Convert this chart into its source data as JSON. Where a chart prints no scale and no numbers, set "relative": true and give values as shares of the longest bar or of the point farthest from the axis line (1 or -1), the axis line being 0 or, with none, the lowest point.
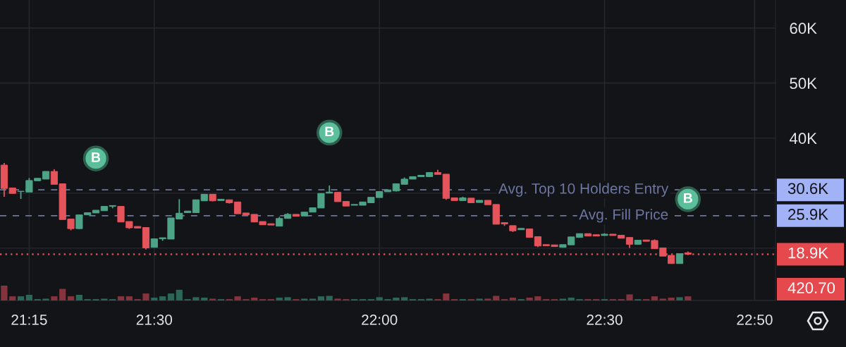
{
  "chart_data": [
    {
      "type": "candlestick",
      "categories": [
        null,
        null,
        null,
        "21:15",
        null,
        null,
        null,
        null,
        null,
        null,
        null,
        null,
        null,
        null,
        null,
        null,
        null,
        null,
        "21:30",
        null,
        null,
        null,
        null,
        null,
        null,
        null,
        null,
        null,
        null,
        null,
        null,
        null,
        null,
        null,
        null,
        null,
        null,
        null,
        null,
        null,
        null,
        null,
        null,
        null,
        null,
        "22:00",
        null,
        null,
        null,
        null,
        null,
        null,
        null,
        null,
        null,
        null,
        null,
        null,
        null,
        null,
        null,
        null,
        null,
        null,
        null,
        null,
        null,
        null,
        null,
        null,
        null,
        null,
        "22:30",
        null,
        null,
        null,
        null,
        null,
        null,
        null,
        null,
        null,
        null,
        null,
        null,
        null,
        null,
        null,
        null,
        null,
        "22:50",
        null,
        null
      ],
      "ohlc": [
        [
          35100,
          35500,
          29350,
          30850
        ],
        [
          30950,
          30950,
          29950,
          29950
        ],
        [
          30300,
          30350,
          28950,
          30350
        ],
        [
          30200,
          32750,
          30200,
          32300
        ],
        [
          32250,
          32700,
          32250,
          32700
        ],
        [
          32550,
          33950,
          32550,
          33950
        ],
        [
          33950,
          34350,
          31600,
          31600
        ],
        [
          31700,
          31700,
          25200,
          25200
        ],
        [
          25300,
          25300,
          23250,
          23550
        ],
        [
          23550,
          26050,
          23500,
          26050
        ],
        [
          26050,
          26450,
          26050,
          26450
        ],
        [
          26400,
          26900,
          26400,
          26900
        ],
        [
          26800,
          27600,
          26800,
          27600
        ],
        [
          27600,
          27750,
          27250,
          27750
        ],
        [
          27600,
          27600,
          24750,
          24750
        ],
        [
          24850,
          24850,
          23500,
          23700
        ],
        [
          23950,
          23950,
          23650,
          23650
        ],
        [
          23750,
          23750,
          19750,
          20050
        ],
        [
          20150,
          21700,
          20150,
          21700
        ],
        [
          21700,
          21900,
          21350,
          21900
        ],
        [
          21650,
          25500,
          21650,
          25500
        ],
        [
          25300,
          28900,
          25300,
          26350
        ],
        [
          26450,
          26750,
          26450,
          26750
        ],
        [
          26450,
          28800,
          26450,
          28800
        ],
        [
          28600,
          29800,
          28600,
          29800
        ],
        [
          29800,
          29800,
          28500,
          28600
        ],
        [
          28650,
          28900,
          28650,
          28900
        ],
        [
          28800,
          28800,
          28100,
          28250
        ],
        [
          28400,
          28400,
          26250,
          26250
        ],
        [
          26400,
          26400,
          26050,
          26050
        ],
        [
          26150,
          26150,
          24750,
          24750
        ],
        [
          24850,
          24850,
          24250,
          24250
        ],
        [
          24450,
          24450,
          24200,
          24200
        ],
        [
          24000,
          25700,
          24000,
          25400
        ],
        [
          25400,
          26350,
          25400,
          26150
        ],
        [
          26150,
          26150,
          25800,
          25800
        ],
        [
          25850,
          26550,
          25850,
          26550
        ],
        [
          26550,
          27350,
          26550,
          27350
        ],
        [
          27300,
          29950,
          27300,
          29950
        ],
        [
          30000,
          31400,
          30000,
          30200
        ],
        [
          30150,
          30150,
          28450,
          28450
        ],
        [
          28500,
          28500,
          27650,
          27650
        ],
        [
          27800,
          27950,
          27800,
          27950
        ],
        [
          27800,
          28400,
          27800,
          28400
        ],
        [
          28250,
          29250,
          28250,
          29250
        ],
        [
          29200,
          30300,
          29200,
          30300
        ],
        [
          30250,
          30600,
          30250,
          30600
        ],
        [
          30400,
          31700,
          30300,
          31700
        ],
        [
          31600,
          32850,
          31600,
          32550
        ],
        [
          32550,
          33000,
          32550,
          33000
        ],
        [
          33000,
          33250,
          33000,
          33250
        ],
        [
          33000,
          33750,
          33000,
          33750
        ],
        [
          33750,
          34250,
          33400,
          33400
        ],
        [
          33450,
          33450,
          28800,
          29050
        ],
        [
          29150,
          29150,
          28650,
          28650
        ],
        [
          28650,
          29350,
          28650,
          29150
        ],
        [
          29100,
          29100,
          28250,
          28250
        ],
        [
          28300,
          28700,
          28300,
          28700
        ],
        [
          28700,
          28700,
          27900,
          27900
        ],
        [
          27950,
          27950,
          24350,
          24350
        ],
        [
          24650,
          24650,
          24050,
          24400
        ],
        [
          24100,
          24100,
          22950,
          23150
        ],
        [
          23350,
          23600,
          23350,
          23600
        ],
        [
          23500,
          23500,
          21950,
          21950
        ],
        [
          22100,
          22100,
          20200,
          20400
        ],
        [
          20650,
          20650,
          20450,
          20450
        ],
        [
          20600,
          20600,
          20250,
          20300
        ],
        [
          20150,
          20650,
          20150,
          20650
        ],
        [
          20600,
          22050,
          20600,
          22050
        ],
        [
          21950,
          22650,
          21950,
          22650
        ],
        [
          22650,
          22650,
          22200,
          22200
        ],
        [
          22450,
          22450,
          22200,
          22200
        ],
        [
          22300,
          22700,
          22300,
          22550
        ],
        [
          22550,
          22550,
          22300,
          22300
        ],
        [
          22350,
          22350,
          21800,
          21800
        ],
        [
          21950,
          21950,
          20050,
          20700
        ],
        [
          20700,
          21450,
          20700,
          21450
        ],
        [
          21500,
          21500,
          21250,
          21250
        ],
        [
          21400,
          21600,
          19900,
          19900
        ],
        [
          20050,
          20050,
          18550,
          18550
        ],
        [
          18700,
          18700,
          17200,
          17200
        ],
        [
          17200,
          19000,
          17200,
          19000
        ],
        [
          19150,
          19400,
          18900,
          18900
        ],
        null,
        null,
        null,
        null,
        null,
        null,
        null,
        null,
        null,
        null
      ],
      "colors": [
        "#e5535b",
        "#e5535b",
        "#4da386",
        "#4da386",
        "#4da386",
        "#4da386",
        "#e5535b",
        "#e5535b",
        "#e5535b",
        "#4da386",
        "#4da386",
        "#4da386",
        "#4da386",
        "#4da386",
        "#e5535b",
        "#e5535b",
        "#e5535b",
        "#e5535b",
        "#4da386",
        "#4da386",
        "#4da386",
        "#4da386",
        "#4da386",
        "#4da386",
        "#4da386",
        "#e5535b",
        "#4da386",
        "#e5535b",
        "#e5535b",
        "#e5535b",
        "#e5535b",
        "#e5535b",
        "#e5535b",
        "#4da386",
        "#4da386",
        "#e5535b",
        "#4da386",
        "#4da386",
        "#4da386",
        "#4da386",
        "#e5535b",
        "#e5535b",
        "#4da386",
        "#4da386",
        "#4da386",
        "#4da386",
        "#4da386",
        "#4da386",
        "#4da386",
        "#4da386",
        "#4da386",
        "#4da386",
        "#e5535b",
        "#e5535b",
        "#e5535b",
        "#4da386",
        "#e5535b",
        "#4da386",
        "#e5535b",
        "#e5535b",
        "#e5535b",
        "#e5535b",
        "#4da386",
        "#e5535b",
        "#e5535b",
        "#e5535b",
        "#e5535b",
        "#4da386",
        "#4da386",
        "#4da386",
        "#e5535b",
        "#e5535b",
        "#4da386",
        "#e5535b",
        "#e5535b",
        "#e5535b",
        "#4da386",
        "#e5535b",
        "#e5535b",
        "#e5535b",
        "#e5535b",
        "#4da386",
        "#e5535b",
        null,
        null,
        null,
        null,
        null,
        null,
        null,
        null,
        null,
        null
      ],
      "series": [
        {
          "type": "scatter",
          "name": "B",
          "color": "#5cbf9c",
          "marker": "circle",
          "values": [
            null,
            null,
            null,
            null,
            null,
            null,
            null,
            null,
            null,
            null,
            null,
            36300,
            null,
            null,
            null,
            null,
            null,
            null,
            null,
            null,
            null,
            null,
            null,
            null,
            null,
            null,
            null,
            null,
            null,
            null,
            null,
            null,
            null,
            null,
            null,
            null,
            null,
            null,
            null,
            41000,
            null,
            null,
            null,
            null,
            null,
            null,
            null,
            null,
            null,
            null,
            null,
            null,
            null,
            null,
            null,
            null,
            null,
            null,
            null,
            null,
            null,
            null,
            null,
            null,
            null,
            null,
            null,
            null,
            null,
            null,
            null,
            null,
            null,
            null,
            null,
            null,
            null,
            null,
            null,
            null,
            null,
            null,
            28900,
            null,
            null,
            null,
            null,
            null,
            null,
            null,
            null,
            null,
            null
          ]
        }
      ],
      "ylim": [
        10500,
        65100
      ],
      "yticks": [
        {
          "value": 20000,
          "label": null
        },
        {
          "value": 30000,
          "label": null
        },
        {
          "value": 40000,
          "label": "40K"
        },
        {
          "value": 50000,
          "label": "50K"
        },
        {
          "value": 60000,
          "label": "60K"
        }
      ],
      "grid": true,
      "ref_lines": [
        {
          "axis": "y",
          "value": 30600,
          "label": "30.6K",
          "color": "#6c76a1",
          "line_style": "dashed"
        },
        {
          "axis": "y",
          "value": 25900,
          "label": "25.9K",
          "color": "#6c76a1",
          "line_style": "dashed"
        },
        {
          "axis": "y",
          "value": 18900,
          "label": "18.9K",
          "color": "#e5484d",
          "line_style": "dotted"
        }
      ],
      "annotations": [
        {
          "text": "Avg. Top 10 Holders Entry",
          "y": 30600
        },
        {
          "text": "Avg. Fill Price",
          "y": 25900
        }
      ]
    },
    {
      "type": "bar",
      "relative": true,
      "categories": [
        null,
        null,
        null,
        null,
        null,
        null,
        null,
        null,
        null,
        null,
        null,
        null,
        null,
        null,
        null,
        null,
        null,
        null,
        null,
        null,
        null,
        null,
        null,
        null,
        null,
        null,
        null,
        null,
        null,
        null,
        null,
        null,
        null,
        null,
        null,
        null,
        null,
        null,
        null,
        null,
        null,
        null,
        null,
        null,
        null,
        null,
        null,
        null,
        null,
        null,
        null,
        null,
        null,
        null,
        null,
        null,
        null,
        null,
        null,
        null,
        null,
        null,
        null,
        null,
        null,
        null,
        null,
        null,
        null,
        null,
        null,
        null,
        null,
        null,
        null,
        null,
        null,
        null,
        null,
        null,
        null,
        null,
        null,
        null,
        null,
        null,
        null,
        null,
        null,
        null,
        null,
        null,
        null
      ],
      "values": [
        1,
        0.28,
        0.28,
        0.38,
        0.09,
        0.12,
        0.28,
        0.78,
        0.28,
        0.38,
        0.09,
        0.09,
        0.12,
        0.09,
        0.28,
        0.28,
        0.09,
        0.47,
        0.19,
        0.28,
        0.47,
        0.72,
        0.09,
        0.22,
        0.19,
        0.12,
        0.09,
        0.09,
        0.28,
        0.09,
        0.19,
        0.09,
        0.09,
        0.19,
        0.22,
        0.09,
        0.12,
        0.12,
        0.28,
        0.31,
        0.12,
        0.09,
        0.09,
        0.09,
        0.09,
        0.22,
        0.09,
        0.19,
        0.22,
        0.09,
        0.09,
        0.12,
        0.09,
        0.47,
        0.09,
        0.09,
        0.09,
        0.12,
        0.12,
        0.31,
        0.09,
        0.19,
        0.09,
        0.19,
        0.28,
        0.09,
        0.09,
        0.12,
        0.19,
        0.09,
        0.09,
        0.09,
        0.09,
        0.09,
        0.09,
        0.41,
        0.09,
        0.09,
        0.28,
        0.12,
        0.19,
        0.22,
        0.28,
        null,
        null,
        null,
        null,
        null,
        null,
        null,
        null,
        null,
        null
      ],
      "colors": [
        "#85333c",
        "#85333c",
        "#2b6656",
        "#2b6656",
        "#2b6656",
        "#2b6656",
        "#85333c",
        "#85333c",
        "#85333c",
        "#2b6656",
        "#2b6656",
        "#2b6656",
        "#2b6656",
        "#2b6656",
        "#85333c",
        "#85333c",
        "#85333c",
        "#85333c",
        "#2b6656",
        "#2b6656",
        "#2b6656",
        "#2b6656",
        "#2b6656",
        "#2b6656",
        "#2b6656",
        "#85333c",
        "#2b6656",
        "#85333c",
        "#85333c",
        "#85333c",
        "#85333c",
        "#85333c",
        "#85333c",
        "#2b6656",
        "#2b6656",
        "#85333c",
        "#2b6656",
        "#2b6656",
        "#2b6656",
        "#2b6656",
        "#85333c",
        "#85333c",
        "#2b6656",
        "#2b6656",
        "#2b6656",
        "#2b6656",
        "#2b6656",
        "#2b6656",
        "#2b6656",
        "#2b6656",
        "#2b6656",
        "#2b6656",
        "#85333c",
        "#85333c",
        "#85333c",
        "#2b6656",
        "#85333c",
        "#2b6656",
        "#85333c",
        "#85333c",
        "#85333c",
        "#85333c",
        "#2b6656",
        "#85333c",
        "#85333c",
        "#85333c",
        "#85333c",
        "#2b6656",
        "#2b6656",
        "#2b6656",
        "#85333c",
        "#85333c",
        "#2b6656",
        "#85333c",
        "#85333c",
        "#85333c",
        "#2b6656",
        "#85333c",
        "#85333c",
        "#85333c",
        "#85333c",
        "#2b6656",
        "#85333c",
        null,
        null,
        null,
        null,
        null,
        null,
        null,
        null,
        null,
        null
      ],
      "annotations": [
        "420.70"
      ]
    }
  ]
}
